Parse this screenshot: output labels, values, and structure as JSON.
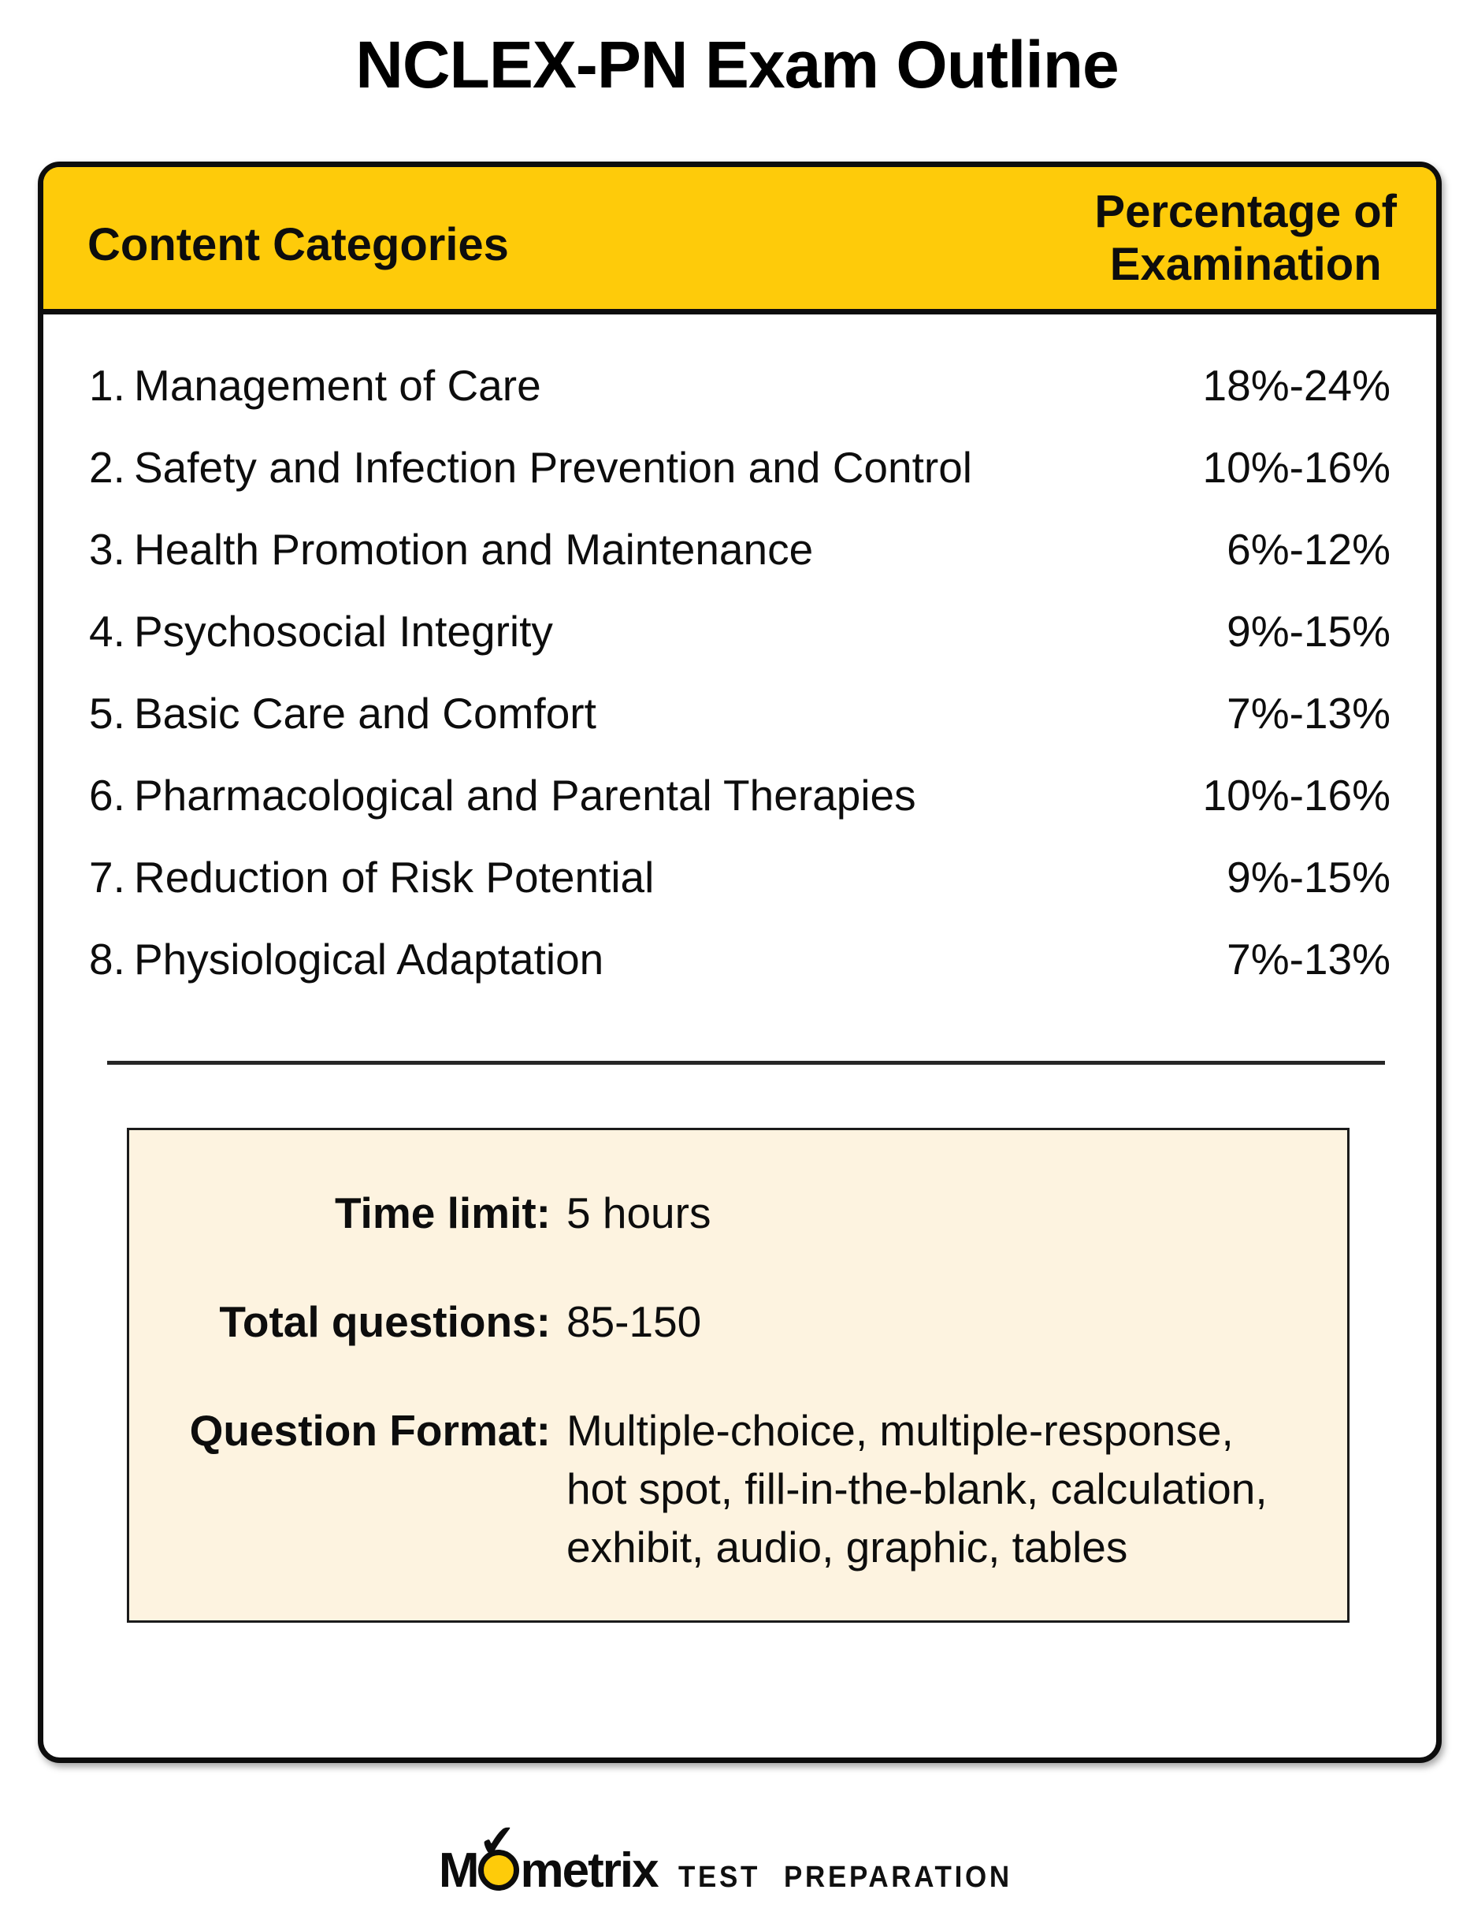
{
  "title": "NCLEX-PN Exam Outline",
  "table": {
    "header": {
      "left": "Content Categories",
      "right": "Percentage of\nExamination"
    },
    "rows": [
      {
        "num": "1.",
        "label": "Management of Care",
        "range": "18%-24%"
      },
      {
        "num": "2.",
        "label": "Safety and Infection Prevention and Control",
        "range": "10%-16%"
      },
      {
        "num": "3.",
        "label": "Health Promotion and Maintenance",
        "range": "6%-12%"
      },
      {
        "num": "4.",
        "label": "Psychosocial Integrity",
        "range": "9%-15%"
      },
      {
        "num": "5.",
        "label": "Basic Care and Comfort",
        "range": "7%-13%"
      },
      {
        "num": "6.",
        "label": "Pharmacological and Parental Therapies",
        "range": "10%-16%"
      },
      {
        "num": "7.",
        "label": "Reduction of Risk Potential",
        "range": "9%-15%"
      },
      {
        "num": "8.",
        "label": "Physiological Adaptation",
        "range": "7%-13%"
      }
    ]
  },
  "info_box": {
    "rows": [
      {
        "label": "Time limit:",
        "value": "5 hours"
      },
      {
        "label": "Total questions:",
        "value": "85-150"
      },
      {
        "label": "Question Format:",
        "value": "Multiple-choice, multiple-response,\nhot spot, fill-in-the-blank, calculation,\nexhibit, audio, graphic, tables"
      }
    ]
  },
  "logo": {
    "word_start": "M",
    "word_end": "metrix",
    "check": "✔",
    "tagline": "TEST PREPARATION"
  },
  "colors": {
    "header_yellow": "#FECB0A",
    "info_cream": "#FDF3E0",
    "ink": "#0D0D0D"
  }
}
